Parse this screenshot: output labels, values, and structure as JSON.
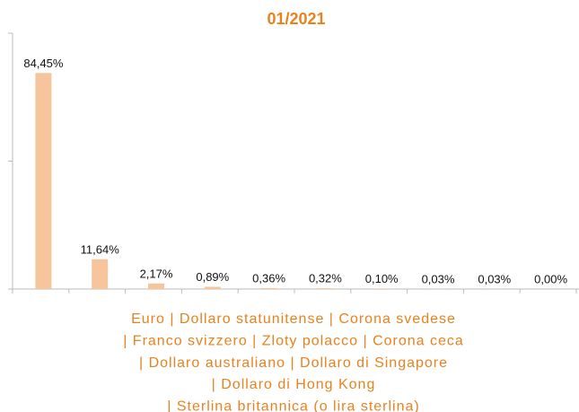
{
  "chart_data": {
    "type": "bar",
    "title": "01/2021",
    "categories": [
      null,
      null,
      null,
      null,
      null,
      null,
      null,
      null,
      null,
      null
    ],
    "values": [
      84.45,
      11.64,
      2.17,
      0.89,
      0.36,
      0.32,
      0.1,
      0.03,
      0.03,
      0.0
    ],
    "value_labels": [
      "84,45%",
      "11,64%",
      "2,17%",
      "0,89%",
      "0,36%",
      "0,32%",
      "0,10%",
      "0,03%",
      "0,03%",
      "0,00%"
    ],
    "color": "#f7c59b",
    "ylim": [
      0,
      100
    ],
    "yticks": [
      0,
      50,
      100
    ],
    "xlabel": [
      "Euro | Dollaro statunitense | Corona svedese",
      "| Franco svizzero | Zloty polacco | Corona ceca",
      "| Dollaro australiano | Dollaro di Singapore",
      "| Dollaro di Hong Kong",
      "| Sterlina britannica (o lira sterlina)"
    ]
  }
}
